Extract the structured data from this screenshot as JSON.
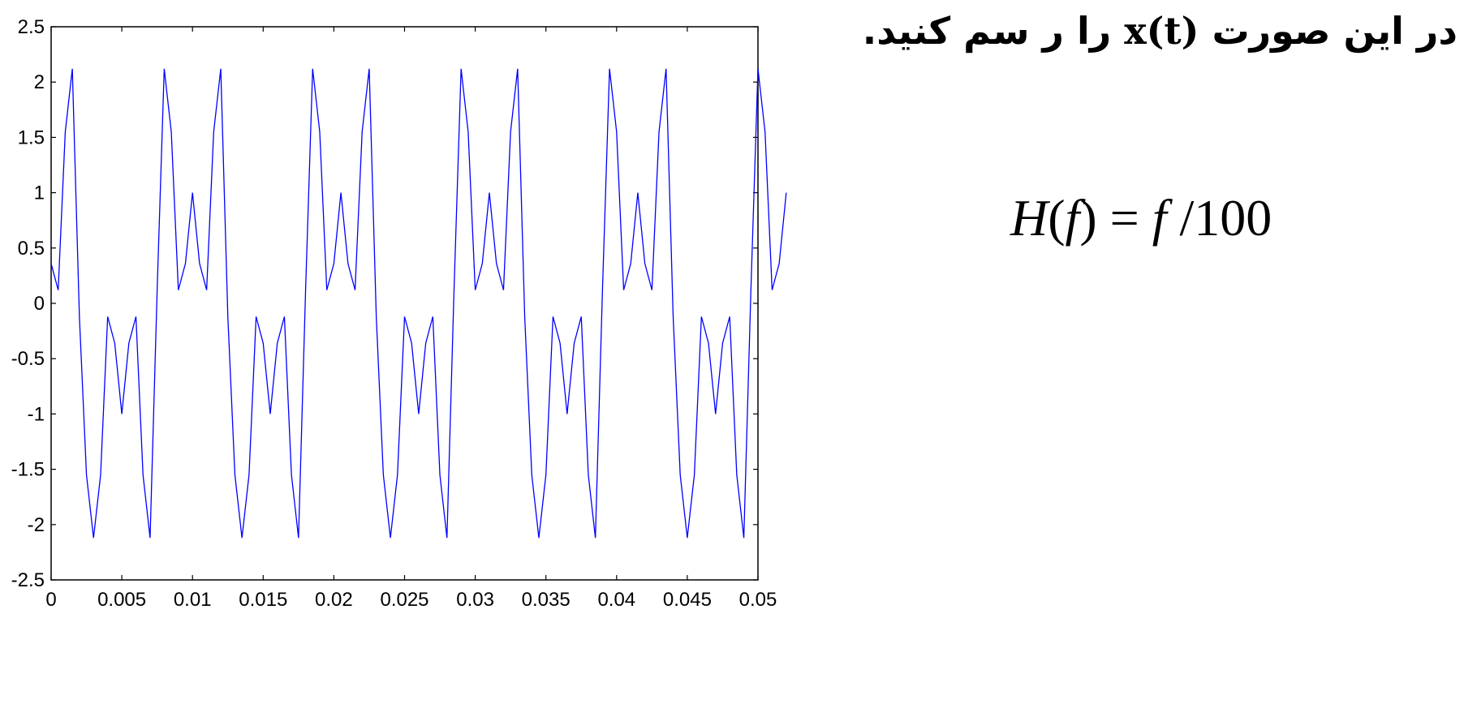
{
  "heading": {
    "before": "در این صورت",
    "symbol": "x(t)",
    "after": "را ر سم کنید."
  },
  "formula": {
    "H": "H",
    "open": "(",
    "f": "f",
    "close": ")",
    "equals": "=",
    "f2": "f",
    "slash": "/",
    "num": "100"
  },
  "chart_data": {
    "type": "line",
    "xlim": [
      0,
      0.05
    ],
    "ylim": [
      -2.5,
      2.5
    ],
    "xticks": [
      "0",
      "0.005",
      "0.01",
      "0.015",
      "0.02",
      "0.025",
      "0.03",
      "0.035",
      "0.04",
      "0.045",
      "0.05"
    ],
    "yticks": [
      "2.5",
      "2",
      "1.5",
      "1",
      "0.5",
      "0",
      "-0.5",
      "-1",
      "-1.5",
      "-2",
      "-2.5"
    ],
    "grid": false,
    "line_color": "#0000ff",
    "series": [
      {
        "x_start": 0,
        "x_step": 0.0005,
        "values": [
          0.36,
          0.12,
          1.55,
          2.12,
          -0.12,
          -1.55,
          -2.12,
          -1.55,
          -0.12,
          -0.36,
          -1.0,
          -0.36,
          -0.12,
          -1.55,
          -2.12,
          0.12,
          2.12,
          1.55,
          0.12,
          0.36,
          1.0,
          0.36,
          0.12,
          1.55,
          2.12,
          -0.12,
          -1.55,
          -2.12,
          -1.55,
          -0.12,
          -0.36,
          -1.0,
          -0.36,
          -0.12,
          -1.55,
          -2.12,
          0.12,
          2.12,
          1.55,
          0.12,
          0.36,
          1.0,
          0.36,
          0.12,
          1.55,
          2.12,
          -0.12,
          -1.55,
          -2.12,
          -1.55,
          -0.12,
          -0.36,
          -1.0,
          -0.36,
          -0.12,
          -1.55,
          -2.12,
          0.12,
          2.12,
          1.55,
          0.12,
          0.36,
          1.0,
          0.36,
          0.12,
          1.55,
          2.12,
          -0.12,
          -1.55,
          -2.12,
          -1.55,
          -0.12,
          -0.36,
          -1.0,
          -0.36,
          -0.12,
          -1.55,
          -2.12,
          0.12,
          2.12,
          1.55,
          0.12,
          0.36,
          1.0,
          0.36,
          0.12,
          1.55,
          2.12,
          -0.12,
          -1.55,
          -2.12,
          -1.55,
          -0.12,
          -0.36,
          -1.0,
          -0.36,
          -0.12,
          -1.55,
          -2.12,
          0.12,
          2.12,
          1.55,
          0.12,
          0.36,
          1.0
        ]
      }
    ]
  }
}
